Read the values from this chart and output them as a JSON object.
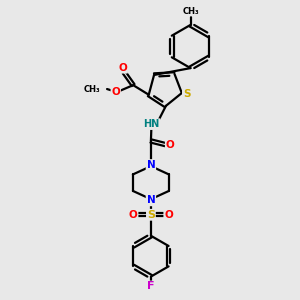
{
  "background_color": "#e8e8e8",
  "bond_color": "#000000",
  "O_color": "#ff0000",
  "N_color": "#0000ff",
  "S_thio_color": "#ccaa00",
  "S_sulfonyl_color": "#ccaa00",
  "F_color": "#cc00cc",
  "H_color": "#008080",
  "line_width": 1.6,
  "dbo": 0.055,
  "xlim": [
    0,
    10
  ],
  "ylim": [
    0,
    10
  ]
}
